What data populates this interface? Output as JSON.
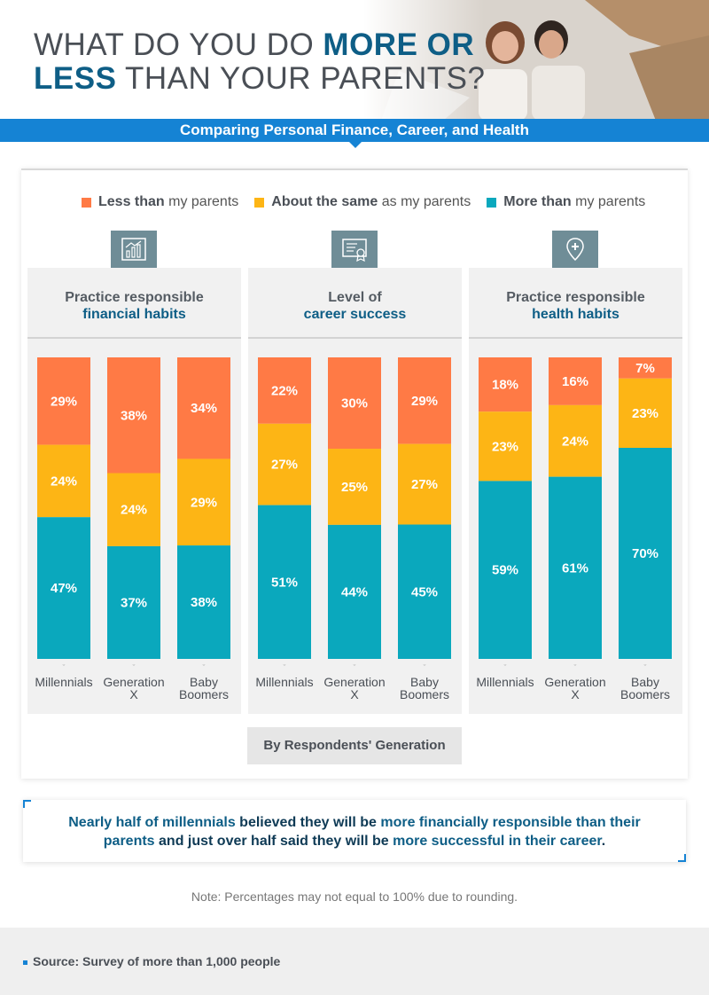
{
  "header": {
    "title_part1": "WHAT DO YOU DO ",
    "title_hl1": "MORE OR",
    "title_hl2": "LESS",
    "title_part2": " THAN YOUR PARENTS?",
    "subtitle": "Comparing Personal Finance, Career, and Health",
    "photo_icon": "couple-photo"
  },
  "colors": {
    "less": "#ff7a45",
    "same": "#fdb515",
    "more": "#0aa8bd",
    "accent": "#1583d4",
    "title_highlight": "#0e5e86"
  },
  "legend": [
    {
      "bold": "Less than",
      "rest": " my parents",
      "key": "less"
    },
    {
      "bold": "About the same",
      "rest": " as my parents",
      "key": "same"
    },
    {
      "bold": "More than",
      "rest": " my parents",
      "key": "more"
    }
  ],
  "chart_data": [
    {
      "type": "bar",
      "stacked": true,
      "title_line1": "Practice responsible",
      "title_line2": "financial habits",
      "icon": "chart-icon",
      "categories": [
        "Millennials",
        "Generation X",
        "Baby Boomers"
      ],
      "series": [
        {
          "name": "Less than my parents",
          "values": [
            29,
            38,
            34
          ]
        },
        {
          "name": "About the same as my parents",
          "values": [
            24,
            24,
            29
          ]
        },
        {
          "name": "More than my parents",
          "values": [
            47,
            37,
            38
          ]
        }
      ]
    },
    {
      "type": "bar",
      "stacked": true,
      "title_line1": "Level of",
      "title_line2": "career success",
      "icon": "certificate-icon",
      "categories": [
        "Millennials",
        "Generation X",
        "Baby Boomers"
      ],
      "series": [
        {
          "name": "Less than my parents",
          "values": [
            22,
            30,
            29
          ]
        },
        {
          "name": "About the same as my parents",
          "values": [
            27,
            25,
            27
          ]
        },
        {
          "name": "More than my parents",
          "values": [
            51,
            44,
            45
          ]
        }
      ]
    },
    {
      "type": "bar",
      "stacked": true,
      "title_line1": "Practice responsible",
      "title_line2": "health habits",
      "icon": "health-icon",
      "categories": [
        "Millennials",
        "Generation X",
        "Baby Boomers"
      ],
      "series": [
        {
          "name": "Less than my parents",
          "values": [
            18,
            16,
            7
          ]
        },
        {
          "name": "About the same as my parents",
          "values": [
            23,
            24,
            23
          ]
        },
        {
          "name": "More than my parents",
          "values": [
            59,
            61,
            70
          ]
        }
      ]
    }
  ],
  "category_labels": [
    {
      "line1": "Millennials",
      "line2": ""
    },
    {
      "line1": "Generation",
      "line2": "X"
    },
    {
      "line1": "Baby",
      "line2": "Boomers"
    }
  ],
  "by_generation": "By Respondents' Generation",
  "callout": {
    "p1": "Nearly half of millennials",
    "p2": " believed they will be ",
    "p3": "more financially responsible than their parents",
    "p4": " and just over half said they will be ",
    "p5": "more successful in their career",
    "p6": "."
  },
  "note": "Note: Percentages may not equal to 100% due to rounding.",
  "source": "Source: Survey of more than 1,000 people"
}
